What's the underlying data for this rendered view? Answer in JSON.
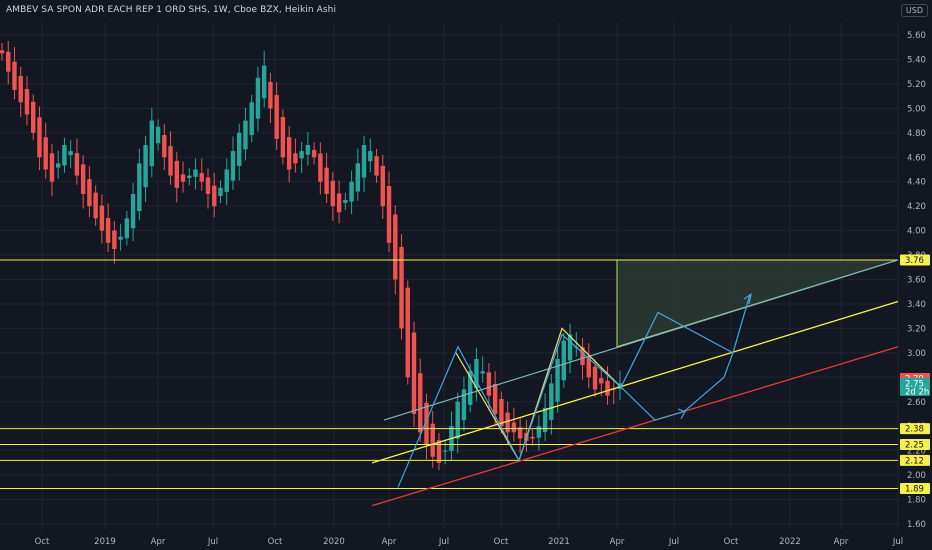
{
  "header": {
    "title": "AMBEV SA SPON ADR EACH REP 1 ORD SHS, 1W, Cboe BZX, Heikin Ashi",
    "currency": "USD"
  },
  "colors": {
    "background": "#131722",
    "grid": "#1f2430",
    "up": "#26a69a",
    "down": "#ef5350",
    "hline": "#f5f04a",
    "trend_upper": "#f5f04a",
    "trend_lower": "#e53935",
    "channel": "#7fb7be",
    "path": "#3fa7e0",
    "zone_fill": "#2b3a33",
    "zone_stroke": "#c6d86a"
  },
  "chart_data": {
    "type": "candlestick",
    "style": "Heikin Ashi",
    "timeframe": "1W",
    "ylim": [
      1.55,
      5.75
    ],
    "y_ticks": [
      "5.60",
      "5.40",
      "5.20",
      "5.00",
      "4.80",
      "4.60",
      "4.40",
      "4.20",
      "4.00",
      "3.80",
      "3.60",
      "3.40",
      "3.20",
      "3.00",
      "2.80",
      "2.60",
      "2.40",
      "2.20",
      "2.00",
      "1.80",
      "1.60"
    ],
    "x_ticks": [
      "Oct",
      "2019",
      "Apr",
      "Jul",
      "Oct",
      "2020",
      "Apr",
      "Jul",
      "Oct",
      "2021",
      "Apr",
      "Jul",
      "Oct",
      "2022",
      "Apr",
      "Jul"
    ],
    "horizontal_levels": [
      {
        "value": 3.76,
        "label": "3.76"
      },
      {
        "value": 2.38,
        "label": "2.38"
      },
      {
        "value": 2.25,
        "label": "2.25"
      },
      {
        "value": 2.12,
        "label": "2.12"
      },
      {
        "value": 1.89,
        "label": "1.89"
      }
    ],
    "last_close": {
      "label": "2.75",
      "sub": "2d 2h"
    },
    "marker": {
      "label": "2.79"
    },
    "candles_weekly": [
      5.45,
      5.3,
      5.15,
      5.05,
      4.95,
      4.8,
      4.6,
      4.5,
      4.4,
      4.55,
      4.7,
      4.65,
      4.45,
      4.3,
      4.2,
      4.1,
      4.0,
      3.9,
      3.85,
      3.95,
      4.1,
      4.3,
      4.55,
      4.7,
      4.9,
      4.85,
      4.6,
      4.45,
      4.35,
      4.4,
      4.45,
      4.5,
      4.4,
      4.3,
      4.2,
      4.35,
      4.5,
      4.65,
      4.8,
      4.9,
      5.05,
      5.25,
      5.35,
      5.0,
      4.75,
      4.6,
      4.5,
      4.55,
      4.65,
      4.7,
      4.6,
      4.4,
      4.3,
      4.2,
      4.15,
      4.25,
      4.4,
      4.55,
      4.7,
      4.65,
      4.45,
      4.2,
      3.9,
      3.6,
      3.2,
      2.8,
      2.5,
      2.35,
      2.25,
      2.15,
      2.1,
      2.2,
      2.4,
      2.6,
      2.7,
      2.85,
      2.95,
      2.85,
      2.65,
      2.5,
      2.4,
      2.35,
      2.35,
      2.3,
      2.28,
      2.3,
      2.4,
      2.55,
      2.75,
      2.95,
      3.1,
      3.15,
      3.05,
      2.9,
      2.8,
      2.7,
      2.75,
      2.65,
      2.7,
      2.75
    ],
    "drawings": {
      "upper_trend": {
        "from": [
          "2020-Mar",
          2.1
        ],
        "to": [
          "2022-Jul",
          3.42
        ]
      },
      "lower_trend": {
        "from": [
          "2020-Mar",
          1.75
        ],
        "to": [
          "2022-Jul",
          3.05
        ]
      },
      "channel_top": {
        "from": [
          "2020-Apr",
          2.45
        ],
        "to": [
          "2022-Jul",
          3.76
        ]
      },
      "target_zone": {
        "from_date": "2021-Apr",
        "to_date": "2022-Jul",
        "top": 3.76,
        "bottom_start": 3.05,
        "bottom_end": 3.76
      }
    }
  }
}
